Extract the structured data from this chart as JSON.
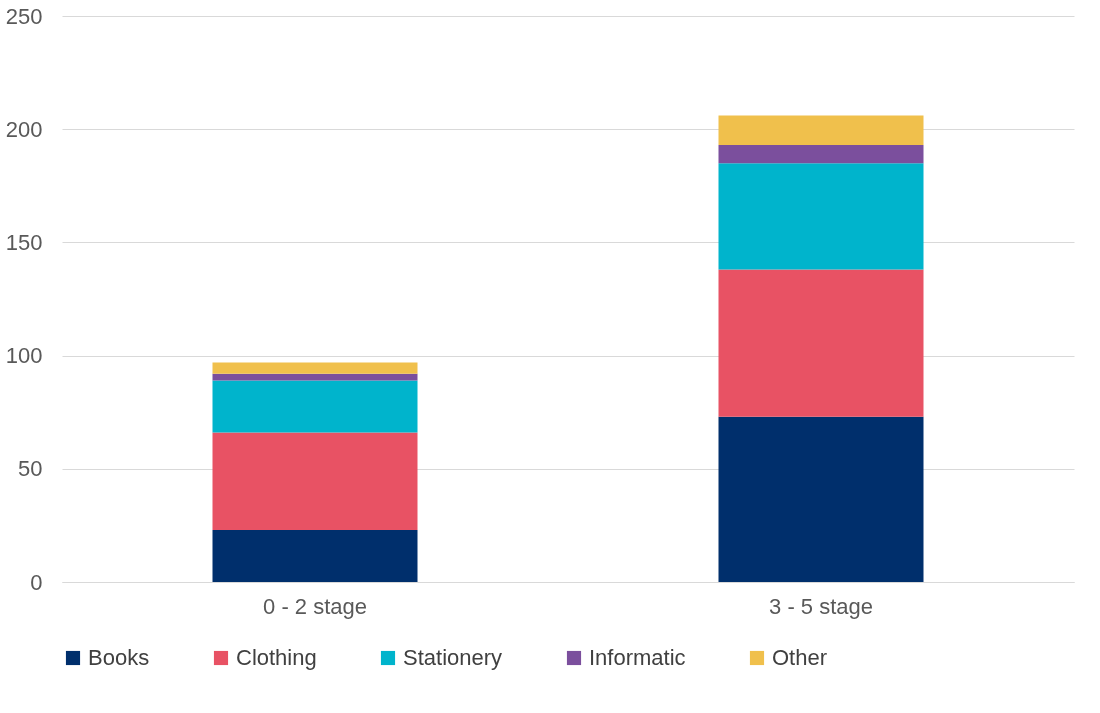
{
  "chart_data": {
    "type": "bar",
    "stacked": true,
    "categories": [
      "0 - 2 stage",
      "3 - 5 stage"
    ],
    "series": [
      {
        "name": "Books",
        "color": "#002f6c",
        "values": [
          23,
          73
        ]
      },
      {
        "name": "Clothing",
        "color": "#e85264",
        "values": [
          43,
          65
        ]
      },
      {
        "name": "Stationery",
        "color": "#00b4cc",
        "values": [
          23,
          47
        ]
      },
      {
        "name": "Informatic",
        "color": "#7b4f9d",
        "values": [
          3,
          8
        ]
      },
      {
        "name": "Other",
        "color": "#f0c04c",
        "values": [
          5,
          13
        ]
      }
    ],
    "ylim": [
      0,
      250
    ],
    "yticks": [
      0,
      50,
      100,
      150,
      200,
      250
    ],
    "grid": "y",
    "legend": "bottom"
  }
}
